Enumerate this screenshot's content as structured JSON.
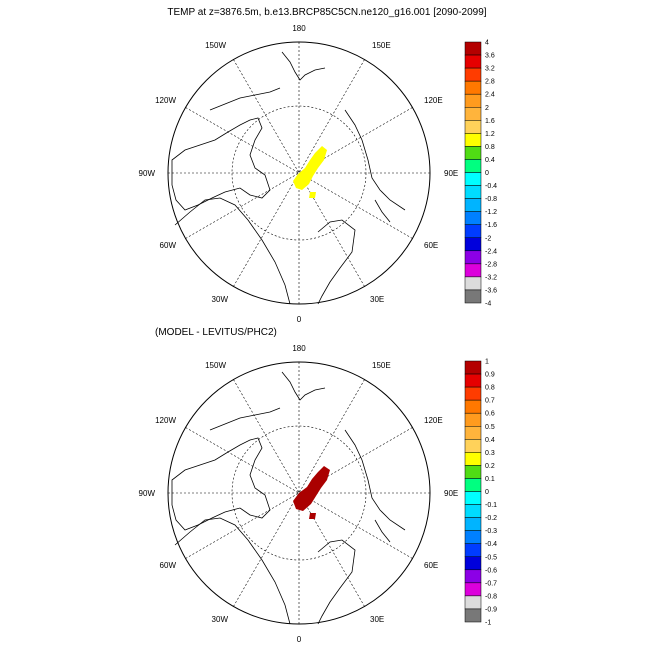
{
  "top_panel": {
    "title": "TEMP at z=3876.5m, b.e13.BRCP85C5CN.ne120_g16.001 [2090-2099]",
    "lon_labels": {
      "top": "180",
      "bottom": "0",
      "left": "90W",
      "right": "90E",
      "upper_left": "150W",
      "upper_right": "150E",
      "mid_upper_left": "120W",
      "mid_upper_right": "120E",
      "mid_lower_left": "60W",
      "mid_lower_right": "60E",
      "lower_left": "30W",
      "lower_right": "30E"
    },
    "field_color": "#ffff00",
    "colorbar": {
      "labels": [
        "4",
        "3.6",
        "3.2",
        "2.8",
        "2.4",
        "2",
        "1.6",
        "1.2",
        "0.8",
        "0.4",
        "0",
        "-0.4",
        "-0.8",
        "-1.2",
        "-1.6",
        "-2",
        "-2.4",
        "-2.8",
        "-3.2",
        "-3.6",
        "-4"
      ],
      "colors": [
        "#b40000",
        "#e60000",
        "#ff3c00",
        "#ff7800",
        "#ff9b1e",
        "#ffb43c",
        "#ffd25a",
        "#ffff00",
        "#50dc14",
        "#00ff80",
        "#00ffff",
        "#00dcff",
        "#00b4ff",
        "#0080ff",
        "#003cff",
        "#0000dc",
        "#8c00e6",
        "#dc00dc",
        "#dcdcdc",
        "#787878"
      ]
    }
  },
  "bottom_panel": {
    "title": "(MODEL - LEVITUS/PHC2)",
    "lon_labels": {
      "top": "180",
      "bottom": "0",
      "left": "90W",
      "right": "90E",
      "upper_left": "150W",
      "upper_right": "150E",
      "mid_upper_left": "120W",
      "mid_upper_right": "120E",
      "mid_lower_left": "60W",
      "mid_lower_right": "60E",
      "lower_left": "30W",
      "lower_right": "30E"
    },
    "field_color": "#aa0000",
    "colorbar": {
      "labels": [
        "1",
        "0.9",
        "0.8",
        "0.7",
        "0.6",
        "0.5",
        "0.4",
        "0.3",
        "0.2",
        "0.1",
        "0",
        "-0.1",
        "-0.2",
        "-0.3",
        "-0.4",
        "-0.5",
        "-0.6",
        "-0.7",
        "-0.8",
        "-0.9",
        "-1"
      ],
      "colors": [
        "#b40000",
        "#e60000",
        "#ff3c00",
        "#ff7800",
        "#ff9b1e",
        "#ffb43c",
        "#ffd25a",
        "#ffff00",
        "#50dc14",
        "#00ff80",
        "#00ffff",
        "#00dcff",
        "#00b4ff",
        "#0080ff",
        "#003cff",
        "#0000dc",
        "#8c00e6",
        "#dc00dc",
        "#dcdcdc",
        "#787878"
      ]
    }
  }
}
